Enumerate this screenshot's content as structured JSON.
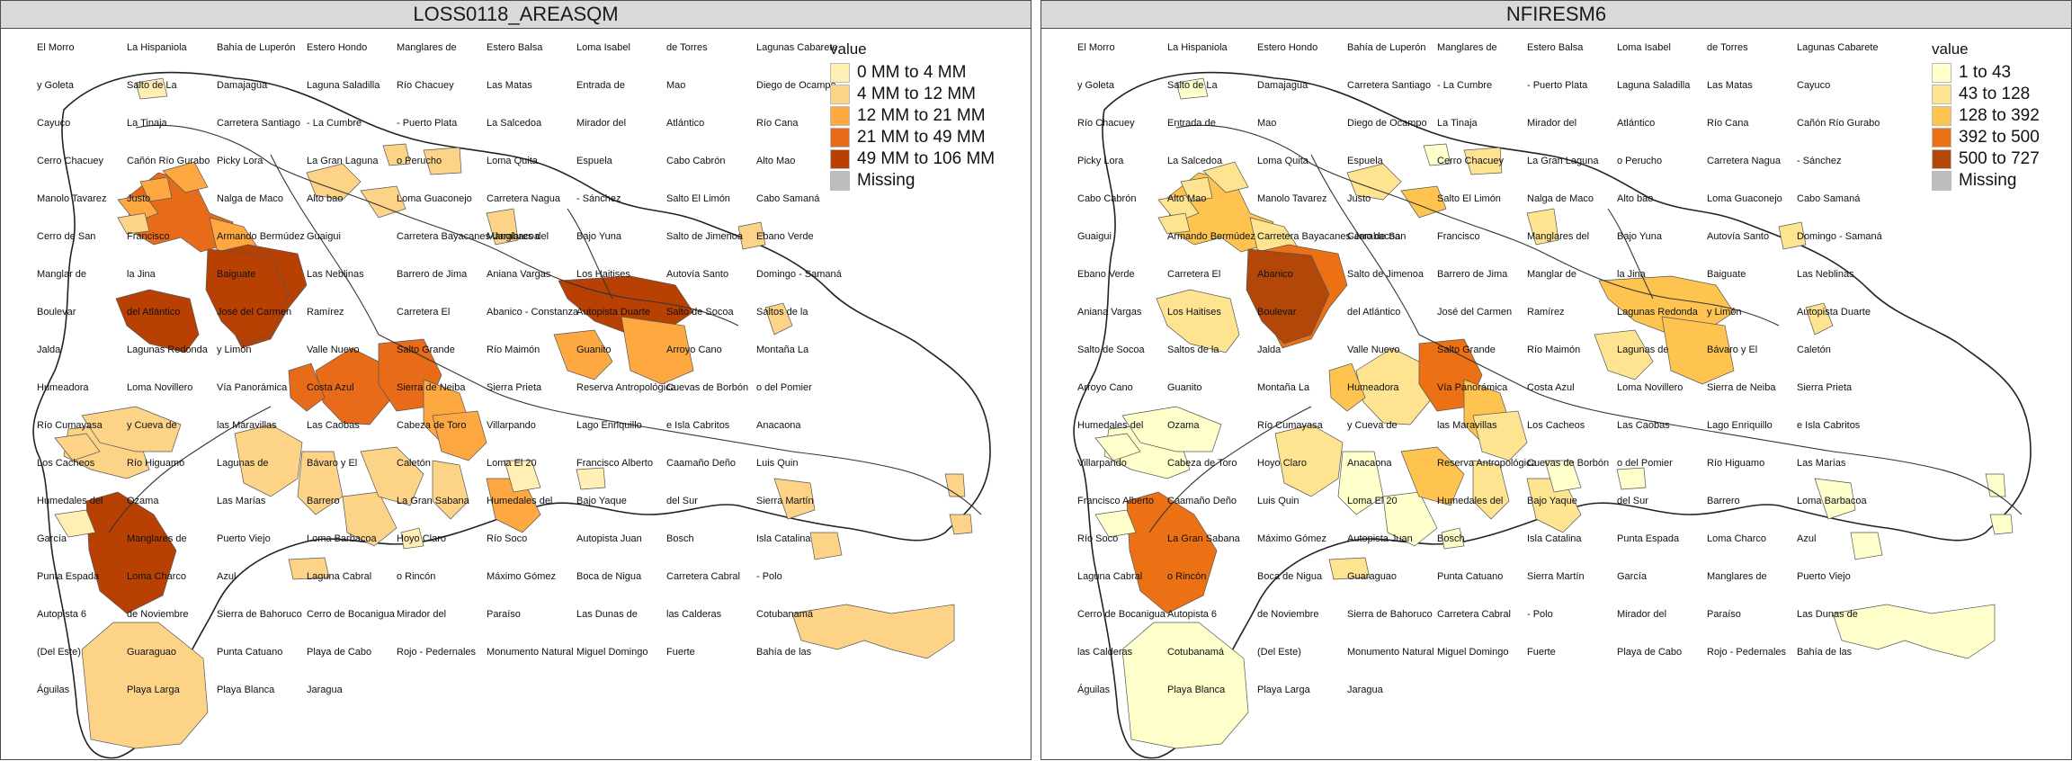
{
  "panels": [
    {
      "title": "LOSS0118_AREASQM",
      "legend": {
        "title": "value",
        "entries": [
          {
            "label": "0 MM to 4 MM",
            "color": "#ffefb4"
          },
          {
            "label": "4 MM to 12 MM",
            "color": "#fdd487"
          },
          {
            "label": "12 MM to 21 MM",
            "color": "#fda841"
          },
          {
            "label": "21 MM to 49 MM",
            "color": "#e76b18"
          },
          {
            "label": "49 MM to 106 MM",
            "color": "#b94003"
          },
          {
            "label": "Missing",
            "color": "#bdbdbd"
          }
        ]
      },
      "labels": [
        "El Morro",
        "La Hispaniola",
        "Bahía de Luperón",
        "Estero Hondo",
        "Manglares de",
        "Estero Balsa",
        "Loma Isabel",
        "de Torres",
        "Lagunas Cabarete",
        "y Goleta",
        "Salto de La",
        "Damajagua",
        "Laguna Saladilla",
        "Río Chacuey",
        "Las Matas",
        "Entrada de",
        "Mao",
        "Diego de Ocampo",
        "Cayuco",
        "La Tinaja",
        "Carretera Santiago",
        "- La Cumbre",
        "- Puerto Plata",
        "La Salcedoa",
        "Mirador del",
        "Atlántico",
        "Río Cana",
        "Cerro Chacuey",
        "Cañón Río Gurabo",
        "Picky Lora",
        "La Gran Laguna",
        "o Perucho",
        "Loma Quita",
        "Espuela",
        "Cabo Cabrón",
        "Alto Mao",
        "Manolo Tavarez",
        "Justo",
        "Nalga de Maco",
        "Alto bao",
        "Loma Guaconejo",
        "Carretera Nagua",
        "- Sánchez",
        "Salto El Limón",
        "Cabo Samaná",
        "Cerro de San",
        "Francisco",
        "Armando Bermúdez",
        "Guaigui",
        "Carretera Bayacanes-Jarabacoa",
        "Manglares del",
        "Bajo Yuna",
        "Salto de Jimenoa",
        "Ebano Verde",
        "Manglar de",
        "la Jina",
        "Baiguate",
        "Las Neblinas",
        "Barrero de Jima",
        "Aniana Vargas",
        "Los Haitises",
        "Autovía Santo",
        "Domingo - Samaná",
        "Boulevar",
        "del Atlántico",
        "José del Carmen",
        "Ramírez",
        "Carretera El",
        "Abanico - Constanza",
        "Autopista Duarte",
        "Salto de Socoa",
        "Saltos de la",
        "Jalda",
        "Lagunas Redonda",
        "y Limón",
        "Valle Nuevo",
        "Salto Grande",
        "Río Maimón",
        "Guanito",
        "Arroyo Cano",
        "Montaña La",
        "Humeadora",
        "Loma Novillero",
        "Vía Panorámica",
        "Costa Azul",
        "Sierra de Neiba",
        "Sierra Prieta",
        "Reserva Antropológica",
        "Cuevas de Borbón",
        "o del Pomier",
        "Río Cumayasa",
        "y Cueva de",
        "las Maravillas",
        "Las Caobas",
        "Cabeza de Toro",
        "Villarpando",
        "Lago Enriquillo",
        "e Isla Cabritos",
        "Anacaona",
        "Los Cacheos",
        "Río Higuamo",
        "Lagunas de",
        "Bávaro y El",
        "Caletón",
        "Loma El 20",
        "Francisco Alberto",
        "Caamaño Deño",
        "Luis Quin",
        "Humedales del",
        "Ozama",
        "Las Marías",
        "Barrero",
        "La Gran Sabana",
        "Humedales del",
        "Bajo Yaque",
        "del Sur",
        "Sierra Martín",
        "García",
        "Manglares de",
        "Puerto Viejo",
        "Loma Barbacoa",
        "Hoyo Claro",
        "Río Soco",
        "Autopista Juan",
        "Bosch",
        "Isla Catalina",
        "Punta Espada",
        "Loma Charco",
        "Azul",
        "Laguna Cabral",
        "o Rincón",
        "Máximo Gómez",
        "Boca de Nigua",
        "Carretera Cabral",
        "- Polo",
        "Autopista 6",
        "de Noviembre",
        "Sierra de Bahoruco",
        "Cerro de Bocanigua",
        "Mirador del",
        "Paraíso",
        "Las Dunas de",
        "las Calderas",
        "Cotubanamá",
        "(Del Este)",
        "Guaraguao",
        "Punta Catuano",
        "Playa de Cabo",
        "Rojo - Pedernales",
        "Monumento Natural",
        "Miguel Domingo",
        "Fuerte",
        "Bahía de las",
        "Águilas",
        "Playa Larga",
        "Playa Blanca",
        "Jaragua"
      ]
    },
    {
      "title": "NFIRESM6",
      "legend": {
        "title": "value",
        "entries": [
          {
            "label": "1 to 43",
            "color": "#ffffcc"
          },
          {
            "label": "43 to 128",
            "color": "#fee391"
          },
          {
            "label": "128 to 392",
            "color": "#fec44f"
          },
          {
            "label": "392 to 500",
            "color": "#ec7014"
          },
          {
            "label": "500 to 727",
            "color": "#b3470a"
          },
          {
            "label": "Missing",
            "color": "#bdbdbd"
          }
        ]
      },
      "labels": [
        "El Morro",
        "La Hispaniola",
        "Estero Hondo",
        "Bahía de Luperón",
        "Manglares de",
        "Estero Balsa",
        "Loma Isabel",
        "de Torres",
        "Lagunas Cabarete",
        "y Goleta",
        "Salto de La",
        "Damajagua",
        "Carretera Santiago",
        "- La Cumbre",
        "- Puerto Plata",
        "Laguna Saladilla",
        "Las Matas",
        "Cayuco",
        "Río Chacuey",
        "Entrada de",
        "Mao",
        "Diego de Ocampo",
        "La Tinaja",
        "Mirador del",
        "Atlántico",
        "Río Cana",
        "Cañón Río Gurabo",
        "Picky Lora",
        "La Salcedoa",
        "Loma Quita",
        "Espuela",
        "Cerro Chacuey",
        "La Gran Laguna",
        "o Perucho",
        "Carretera Nagua",
        "- Sánchez",
        "Cabo Cabrón",
        "Alto Mao",
        "Manolo Tavarez",
        "Justo",
        "Salto El Limón",
        "Nalga de Maco",
        "Alto bao",
        "Loma Guaconejo",
        "Cabo Samaná",
        "Guaigui",
        "Armando Bermúdez",
        "Carretera Bayacanes-Jarabacoa",
        "Cerro de San",
        "Francisco",
        "Manglares del",
        "Bajo Yuna",
        "Autovía Santo",
        "Domingo - Samaná",
        "Ebano Verde",
        "Carretera El",
        "Abanico",
        "Salto de Jimenoa",
        "Barrero de Jima",
        "Manglar de",
        "la Jina",
        "Baiguate",
        "Las Neblinas",
        "Aniana Vargas",
        "Los Haitises",
        "Boulevar",
        "del Atlántico",
        "José del Carmen",
        "Ramírez",
        "Lagunas Redonda",
        "y Limón",
        "Autopista Duarte",
        "Salto de Socoa",
        "Saltos de la",
        "Jalda",
        "Valle Nuevo",
        "Salto Grande",
        "Río Maimón",
        "Lagunas de",
        "Bávaro y El",
        "Caletón",
        "Arroyo Cano",
        "Guanito",
        "Montaña La",
        "Humeadora",
        "Vía Panorámica",
        "Costa Azul",
        "Loma Novillero",
        "Sierra de Neiba",
        "Sierra Prieta",
        "Humedales del",
        "Ozama",
        "Río Cumayasa",
        "y Cueva de",
        "las Maravillas",
        "Los Cacheos",
        "Las Caobas",
        "Lago Enriquillo",
        "e Isla Cabritos",
        "Villarpando",
        "Cabeza de Toro",
        "Hoyo Claro",
        "Anacaona",
        "Reserva Antropológica",
        "Cuevas de Borbón",
        "o del Pomier",
        "Río Higuamo",
        "Las Marías",
        "Francisco Alberto",
        "Caamaño Deño",
        "Luis Quin",
        "Loma El 20",
        "Humedales del",
        "Bajo Yaque",
        "del Sur",
        "Barrero",
        "Loma Barbacoa",
        "Río Soco",
        "La Gran Sabana",
        "Máximo Gómez",
        "Autopista Juan",
        "Bosch",
        "Isla Catalina",
        "Punta Espada",
        "Loma Charco",
        "Azul",
        "Laguna Cabral",
        "o Rincón",
        "Boca de Nigua",
        "Guaraguao",
        "Punta Catuano",
        "Sierra Martín",
        "García",
        "Manglares de",
        "Puerto Viejo",
        "Cerro de Bocanigua",
        "Autopista 6",
        "de Noviembre",
        "Sierra de Bahoruco",
        "Carretera Cabral",
        "- Polo",
        "Mirador del",
        "Paraíso",
        "Las Dunas de",
        "las Calderas",
        "Cotubanamá",
        "(Del Este)",
        "Monumento Natural",
        "Miguel Domingo",
        "Fuerte",
        "Playa de Cabo",
        "Rojo - Pedernales",
        "Bahía de las",
        "Águilas",
        "Playa Blanca",
        "Playa Larga",
        "Jaragua"
      ]
    }
  ]
}
